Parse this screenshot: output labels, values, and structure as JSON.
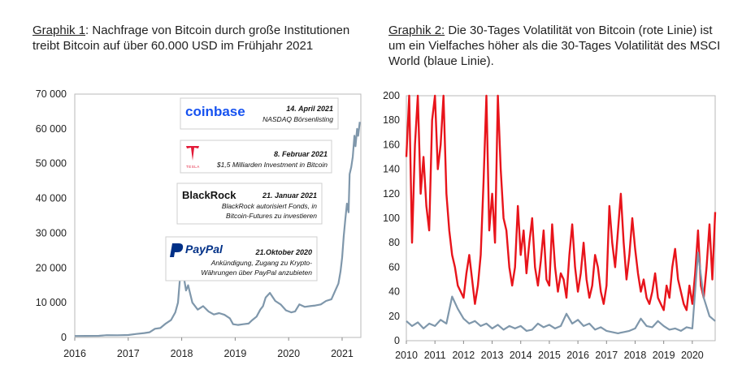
{
  "captions": {
    "left": {
      "lead": "Graphik 1",
      "text": ": Nachfrage von Bitcoin durch große Institutionen treibt Bitcoin auf über 60.000 USD im Frühjahr 2021"
    },
    "right": {
      "lead": "Graphik 2:",
      "text": " Die 30-Tages Volatilität von Bitcoin (rote Linie) ist um ein Vielfaches höher als die 30-Tages Volatilität des MSCI World (blaue Linie)."
    }
  },
  "chart_data": [
    {
      "type": "line",
      "title": "",
      "xlabel": "",
      "ylabel": "",
      "xlim": [
        2016,
        2021.35
      ],
      "ylim": [
        0,
        70000
      ],
      "y_ticks": [
        {
          "value": 0,
          "label": "0"
        },
        {
          "value": 10000,
          "label": "10 000"
        },
        {
          "value": 20000,
          "label": "20 000"
        },
        {
          "value": 30000,
          "label": "30 000"
        },
        {
          "value": 40000,
          "label": "40 000"
        },
        {
          "value": 50000,
          "label": "50 000"
        },
        {
          "value": 60000,
          "label": "60 000"
        },
        {
          "value": 70000,
          "label": "70 000"
        }
      ],
      "x_ticks": [
        {
          "value": 2016,
          "label": "2016"
        },
        {
          "value": 2017,
          "label": "2017"
        },
        {
          "value": 2018,
          "label": "2018"
        },
        {
          "value": 2019,
          "label": "2019"
        },
        {
          "value": 2020,
          "label": "2020"
        },
        {
          "value": 2021,
          "label": "2021"
        }
      ],
      "series": [
        {
          "name": "Bitcoin (USD)",
          "color": "#7f97ab",
          "x": [
            2016.0,
            2016.2,
            2016.45,
            2016.6,
            2016.8,
            2017.0,
            2017.15,
            2017.3,
            2017.4,
            2017.5,
            2017.6,
            2017.7,
            2017.8,
            2017.88,
            2017.93,
            2017.97,
            2018.02,
            2018.08,
            2018.12,
            2018.2,
            2018.3,
            2018.4,
            2018.5,
            2018.6,
            2018.7,
            2018.8,
            2018.9,
            2018.96,
            2019.05,
            2019.15,
            2019.25,
            2019.32,
            2019.4,
            2019.47,
            2019.52,
            2019.57,
            2019.65,
            2019.75,
            2019.85,
            2019.95,
            2020.05,
            2020.12,
            2020.2,
            2020.3,
            2020.4,
            2020.5,
            2020.6,
            2020.7,
            2020.8,
            2020.88,
            2020.93,
            2020.97,
            2021.0,
            2021.03,
            2021.06,
            2021.09,
            2021.12,
            2021.14,
            2021.17,
            2021.2,
            2021.23,
            2021.25,
            2021.28,
            2021.3,
            2021.33
          ],
          "values": [
            430,
            440,
            470,
            650,
            640,
            700,
            1000,
            1250,
            1500,
            2500,
            2700,
            4000,
            5000,
            7200,
            10000,
            17500,
            19200,
            13500,
            15000,
            10000,
            8000,
            9000,
            7500,
            6600,
            7000,
            6500,
            5500,
            3800,
            3600,
            3800,
            4000,
            5000,
            6000,
            8000,
            9000,
            11500,
            12800,
            10500,
            9500,
            7800,
            7200,
            7500,
            9500,
            8800,
            9000,
            9200,
            9500,
            10500,
            11000,
            13800,
            15500,
            19000,
            23000,
            29000,
            34000,
            38500,
            36000,
            47000,
            49000,
            52000,
            58000,
            55000,
            60000,
            58000,
            62000
          ]
        }
      ],
      "annotations": [
        {
          "logo": "coinbase",
          "date": "14. April 2021",
          "text": [
            "NASDAQ Börsenlisting"
          ]
        },
        {
          "logo": "TESLA",
          "date": "8. Februar 2021",
          "text": [
            "$1,5 Milliarden Investment in Bitcoin"
          ]
        },
        {
          "logo": "BlackRock",
          "date": "21. Januar 2021",
          "text": [
            "BlackRock autorisiert Fonds, in",
            "Bitcoin-Futures zu investieren"
          ]
        },
        {
          "logo": "PayPal",
          "date": "21.Oktober 2020",
          "text": [
            "Ankündigung, Zugang zu Krypto-",
            "Währungen über PayPal anzubieten"
          ]
        }
      ]
    },
    {
      "type": "line",
      "title": "",
      "xlabel": "",
      "ylabel": "",
      "xlim": [
        2010,
        2020.8
      ],
      "ylim": [
        0,
        200
      ],
      "y_ticks": [
        {
          "value": 0,
          "label": "0"
        },
        {
          "value": 20,
          "label": "20"
        },
        {
          "value": 40,
          "label": "40"
        },
        {
          "value": 60,
          "label": "60"
        },
        {
          "value": 80,
          "label": "80"
        },
        {
          "value": 100,
          "label": "100"
        },
        {
          "value": 120,
          "label": "120"
        },
        {
          "value": 140,
          "label": "140"
        },
        {
          "value": 160,
          "label": "160"
        },
        {
          "value": 180,
          "label": "180"
        },
        {
          "value": 200,
          "label": "200"
        }
      ],
      "x_ticks": [
        {
          "value": 2010,
          "label": "2010"
        },
        {
          "value": 2011,
          "label": "2011"
        },
        {
          "value": 2012,
          "label": "2012"
        },
        {
          "value": 2013,
          "label": "2013"
        },
        {
          "value": 2014,
          "label": "2014"
        },
        {
          "value": 2015,
          "label": "2015"
        },
        {
          "value": 2016,
          "label": "2016"
        },
        {
          "value": 2017,
          "label": "2017"
        },
        {
          "value": 2018,
          "label": "2018"
        },
        {
          "value": 2019,
          "label": "2019"
        },
        {
          "value": 2020,
          "label": "2020"
        }
      ],
      "series": [
        {
          "name": "Bitcoin 30-Tages Volatilität",
          "color": "#e8141b",
          "x": [
            2010.0,
            2010.1,
            2010.2,
            2010.3,
            2010.4,
            2010.5,
            2010.6,
            2010.7,
            2010.8,
            2010.9,
            2011.0,
            2011.1,
            2011.2,
            2011.3,
            2011.4,
            2011.5,
            2011.6,
            2011.7,
            2011.8,
            2011.9,
            2012.0,
            2012.1,
            2012.2,
            2012.3,
            2012.4,
            2012.5,
            2012.6,
            2012.7,
            2012.8,
            2012.9,
            2013.0,
            2013.1,
            2013.2,
            2013.3,
            2013.4,
            2013.5,
            2013.6,
            2013.7,
            2013.8,
            2013.9,
            2014.0,
            2014.1,
            2014.2,
            2014.3,
            2014.4,
            2014.5,
            2014.6,
            2014.7,
            2014.8,
            2014.9,
            2015.0,
            2015.1,
            2015.2,
            2015.3,
            2015.4,
            2015.5,
            2015.6,
            2015.7,
            2015.8,
            2015.9,
            2016.0,
            2016.1,
            2016.2,
            2016.3,
            2016.4,
            2016.5,
            2016.6,
            2016.7,
            2016.8,
            2016.9,
            2017.0,
            2017.1,
            2017.2,
            2017.3,
            2017.4,
            2017.5,
            2017.6,
            2017.7,
            2017.8,
            2017.9,
            2018.0,
            2018.1,
            2018.2,
            2018.3,
            2018.4,
            2018.5,
            2018.6,
            2018.7,
            2018.8,
            2018.9,
            2019.0,
            2019.1,
            2019.2,
            2019.3,
            2019.4,
            2019.5,
            2019.6,
            2019.7,
            2019.8,
            2019.9,
            2020.0,
            2020.1,
            2020.2,
            2020.3,
            2020.4,
            2020.5,
            2020.6,
            2020.7,
            2020.8
          ],
          "values": [
            150,
            200,
            80,
            160,
            200,
            120,
            150,
            110,
            90,
            180,
            200,
            140,
            160,
            200,
            120,
            90,
            70,
            60,
            45,
            40,
            35,
            55,
            70,
            50,
            30,
            45,
            70,
            130,
            200,
            90,
            120,
            80,
            200,
            140,
            100,
            90,
            60,
            45,
            60,
            110,
            70,
            90,
            55,
            80,
            100,
            60,
            45,
            65,
            90,
            50,
            45,
            95,
            60,
            40,
            55,
            50,
            35,
            70,
            95,
            60,
            40,
            55,
            80,
            50,
            35,
            45,
            70,
            60,
            40,
            30,
            45,
            110,
            80,
            60,
            90,
            120,
            80,
            50,
            70,
            100,
            75,
            55,
            40,
            50,
            35,
            30,
            40,
            55,
            35,
            30,
            25,
            45,
            35,
            60,
            75,
            50,
            40,
            30,
            25,
            45,
            30,
            55,
            90,
            45,
            35,
            60,
            95,
            50,
            105
          ]
        },
        {
          "name": "MSCI World 30-Tages Volatilität",
          "color": "#7f97ab",
          "x": [
            2010.0,
            2010.2,
            2010.4,
            2010.6,
            2010.8,
            2011.0,
            2011.2,
            2011.4,
            2011.6,
            2011.8,
            2012.0,
            2012.2,
            2012.4,
            2012.6,
            2012.8,
            2013.0,
            2013.2,
            2013.4,
            2013.6,
            2013.8,
            2014.0,
            2014.2,
            2014.4,
            2014.6,
            2014.8,
            2015.0,
            2015.2,
            2015.4,
            2015.6,
            2015.8,
            2016.0,
            2016.2,
            2016.4,
            2016.6,
            2016.8,
            2017.0,
            2017.2,
            2017.4,
            2017.6,
            2017.8,
            2018.0,
            2018.2,
            2018.4,
            2018.6,
            2018.8,
            2019.0,
            2019.2,
            2019.4,
            2019.6,
            2019.8,
            2020.0,
            2020.2,
            2020.4,
            2020.6,
            2020.8
          ],
          "values": [
            16,
            12,
            15,
            10,
            14,
            12,
            17,
            14,
            36,
            26,
            18,
            14,
            16,
            12,
            14,
            10,
            13,
            9,
            12,
            10,
            12,
            8,
            9,
            14,
            11,
            13,
            10,
            12,
            22,
            14,
            17,
            12,
            14,
            9,
            11,
            8,
            7,
            6,
            7,
            8,
            10,
            18,
            12,
            11,
            16,
            12,
            9,
            10,
            8,
            11,
            10,
            72,
            35,
            20,
            16
          ]
        }
      ]
    }
  ]
}
